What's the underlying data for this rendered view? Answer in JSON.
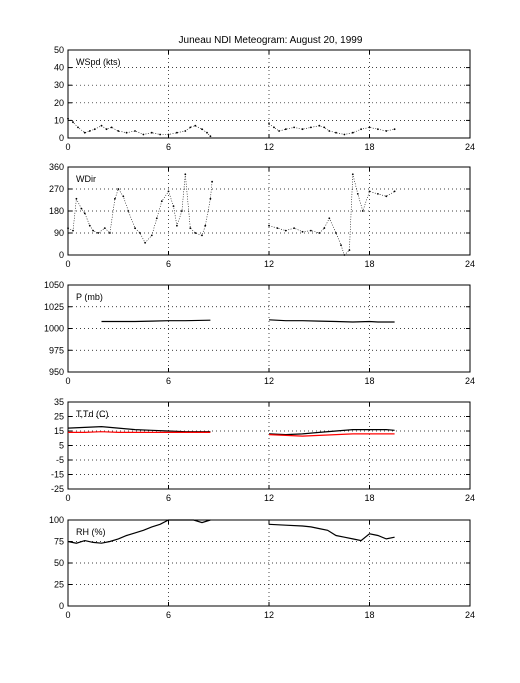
{
  "title": "Juneau NDI Meteogram:",
  "date": "August 20, 1999",
  "chart_data": [
    {
      "type": "scatter",
      "label": "WSpd (kts)",
      "xlim": [
        0,
        24
      ],
      "xticks": [
        0,
        6,
        12,
        18,
        24
      ],
      "ylim": [
        0,
        50
      ],
      "yticks": [
        0,
        10,
        20,
        30,
        40,
        50
      ],
      "grid": true,
      "series": [
        {
          "color": "#000000",
          "segments": [
            [
              [
                0,
                11
              ],
              [
                0.3,
                9
              ],
              [
                0.6,
                6
              ],
              [
                1,
                3
              ],
              [
                1.3,
                4
              ],
              [
                1.6,
                5
              ],
              [
                2,
                7
              ],
              [
                2.3,
                5
              ],
              [
                2.6,
                6
              ],
              [
                3,
                4
              ],
              [
                3.5,
                3
              ],
              [
                4,
                4
              ],
              [
                4.5,
                2
              ],
              [
                5,
                3
              ],
              [
                5.5,
                2
              ],
              [
                6,
                2
              ],
              [
                6.5,
                3
              ],
              [
                7,
                4
              ],
              [
                7.3,
                6
              ],
              [
                7.6,
                7
              ],
              [
                8,
                5
              ],
              [
                8.3,
                3
              ],
              [
                8.5,
                1
              ]
            ],
            [
              [
                12,
                8
              ],
              [
                12.3,
                6
              ],
              [
                12.6,
                4
              ],
              [
                13,
                5
              ],
              [
                13.5,
                6
              ],
              [
                14,
                5
              ],
              [
                14.5,
                6
              ],
              [
                15,
                7
              ],
              [
                15.3,
                6
              ],
              [
                15.6,
                4
              ],
              [
                16,
                3
              ],
              [
                16.5,
                2
              ],
              [
                17,
                3
              ],
              [
                17.5,
                5
              ],
              [
                18,
                6
              ],
              [
                18.5,
                5
              ],
              [
                19,
                4
              ],
              [
                19.5,
                5
              ]
            ]
          ]
        }
      ]
    },
    {
      "type": "scatter",
      "label": "WDir",
      "xlim": [
        0,
        24
      ],
      "xticks": [
        0,
        6,
        12,
        18,
        24
      ],
      "ylim": [
        0,
        360
      ],
      "yticks": [
        0,
        90,
        180,
        270,
        360
      ],
      "grid": true,
      "series": [
        {
          "color": "#000000",
          "segments": [
            [
              [
                0,
                110
              ],
              [
                0.3,
                100
              ],
              [
                0.5,
                230
              ],
              [
                0.8,
                190
              ],
              [
                1,
                170
              ],
              [
                1.3,
                120
              ],
              [
                1.5,
                100
              ],
              [
                1.8,
                90
              ],
              [
                2.2,
                110
              ],
              [
                2.5,
                90
              ],
              [
                2.8,
                230
              ],
              [
                3,
                270
              ],
              [
                3.3,
                240
              ],
              [
                3.6,
                180
              ],
              [
                4,
                110
              ],
              [
                4.3,
                90
              ],
              [
                4.6,
                50
              ],
              [
                5,
                80
              ],
              [
                5.3,
                150
              ],
              [
                5.6,
                220
              ],
              [
                6,
                260
              ],
              [
                6.3,
                200
              ],
              [
                6.5,
                120
              ],
              [
                6.8,
                180
              ],
              [
                7,
                330
              ],
              [
                7.3,
                110
              ],
              [
                7.6,
                90
              ],
              [
                8,
                80
              ],
              [
                8.2,
                120
              ],
              [
                8.5,
                230
              ],
              [
                8.6,
                300
              ]
            ],
            [
              [
                12,
                120
              ],
              [
                12.5,
                110
              ],
              [
                13,
                100
              ],
              [
                13.5,
                110
              ],
              [
                14,
                95
              ],
              [
                14.5,
                100
              ],
              [
                15,
                90
              ],
              [
                15.3,
                110
              ],
              [
                15.6,
                150
              ],
              [
                16,
                90
              ],
              [
                16.3,
                40
              ],
              [
                16.5,
                0
              ],
              [
                16.8,
                20
              ],
              [
                17,
                330
              ],
              [
                17.3,
                250
              ],
              [
                17.6,
                180
              ],
              [
                18,
                260
              ],
              [
                18.5,
                250
              ],
              [
                19,
                240
              ],
              [
                19.5,
                260
              ]
            ]
          ]
        }
      ]
    },
    {
      "type": "line",
      "label": "P (mb)",
      "xlim": [
        0,
        24
      ],
      "xticks": [
        0,
        6,
        12,
        18,
        24
      ],
      "ylim": [
        950,
        1050
      ],
      "yticks": [
        950,
        975,
        1000,
        1025,
        1050
      ],
      "grid": true,
      "series": [
        {
          "color": "#000000",
          "segments": [
            [
              [
                2,
                1008
              ],
              [
                4,
                1008
              ],
              [
                5,
                1008.5
              ],
              [
                6,
                1009
              ],
              [
                7,
                1009
              ],
              [
                8.5,
                1009.5
              ]
            ],
            [
              [
                12,
                1010
              ],
              [
                13,
                1009
              ],
              [
                14,
                1009
              ],
              [
                15,
                1008.5
              ],
              [
                16,
                1008
              ],
              [
                17,
                1007.5
              ],
              [
                18,
                1008
              ],
              [
                18.5,
                1007.5
              ],
              [
                19.5,
                1007.5
              ]
            ]
          ]
        }
      ]
    },
    {
      "type": "line",
      "label": "T,Td (C)",
      "xlim": [
        0,
        24
      ],
      "xticks": [
        0,
        6,
        12,
        18,
        24
      ],
      "ylim": [
        -25,
        35
      ],
      "yticks": [
        -25,
        -15,
        -5,
        5,
        15,
        25,
        35
      ],
      "grid": true,
      "series": [
        {
          "color": "#000000",
          "segments": [
            [
              [
                0,
                17
              ],
              [
                1,
                17.5
              ],
              [
                2,
                18
              ],
              [
                3,
                17
              ],
              [
                4,
                16
              ],
              [
                5,
                15.5
              ],
              [
                6,
                15
              ],
              [
                7,
                14.5
              ],
              [
                8,
                14.5
              ],
              [
                8.5,
                14.5
              ]
            ],
            [
              [
                12,
                13
              ],
              [
                13,
                12.5
              ],
              [
                14,
                13
              ],
              [
                15,
                14
              ],
              [
                16,
                15
              ],
              [
                17,
                16
              ],
              [
                18,
                16
              ],
              [
                19,
                16
              ],
              [
                19.5,
                15.5
              ]
            ]
          ]
        },
        {
          "color": "#ff0000",
          "segments": [
            [
              [
                0,
                14
              ],
              [
                1,
                14
              ],
              [
                2,
                14.5
              ],
              [
                3,
                14
              ],
              [
                4,
                14
              ],
              [
                5,
                14
              ],
              [
                6,
                14
              ],
              [
                7,
                14
              ],
              [
                8,
                14
              ],
              [
                8.5,
                14
              ]
            ],
            [
              [
                12,
                12.5
              ],
              [
                13,
                12
              ],
              [
                14,
                11.5
              ],
              [
                15,
                12
              ],
              [
                16,
                12.5
              ],
              [
                17,
                13
              ],
              [
                18,
                13
              ],
              [
                19,
                13
              ],
              [
                19.5,
                13
              ]
            ]
          ]
        }
      ]
    },
    {
      "type": "line",
      "label": "RH (%)",
      "xlim": [
        0,
        24
      ],
      "xticks": [
        0,
        6,
        12,
        18,
        24
      ],
      "ylim": [
        0,
        100
      ],
      "yticks": [
        0,
        25,
        50,
        75,
        100
      ],
      "grid": true,
      "series": [
        {
          "color": "#000000",
          "segments": [
            [
              [
                0,
                75
              ],
              [
                0.5,
                73
              ],
              [
                1,
                76
              ],
              [
                1.5,
                74
              ],
              [
                2,
                73
              ],
              [
                2.5,
                75
              ],
              [
                3,
                78
              ],
              [
                3.5,
                82
              ],
              [
                4,
                85
              ],
              [
                4.5,
                88
              ],
              [
                5,
                92
              ],
              [
                5.5,
                95
              ],
              [
                6,
                100
              ],
              [
                6.5,
                100
              ],
              [
                7,
                100
              ],
              [
                7.5,
                100
              ],
              [
                8,
                97
              ],
              [
                8.5,
                100
              ]
            ],
            [
              [
                12,
                95
              ],
              [
                13,
                94
              ],
              [
                14,
                93
              ],
              [
                14.5,
                92
              ],
              [
                15,
                90
              ],
              [
                15.5,
                88
              ],
              [
                16,
                82
              ],
              [
                16.5,
                80
              ],
              [
                17,
                78
              ],
              [
                17.5,
                76
              ],
              [
                18,
                84
              ],
              [
                18.5,
                82
              ],
              [
                19,
                78
              ],
              [
                19.5,
                80
              ]
            ]
          ]
        }
      ]
    }
  ]
}
